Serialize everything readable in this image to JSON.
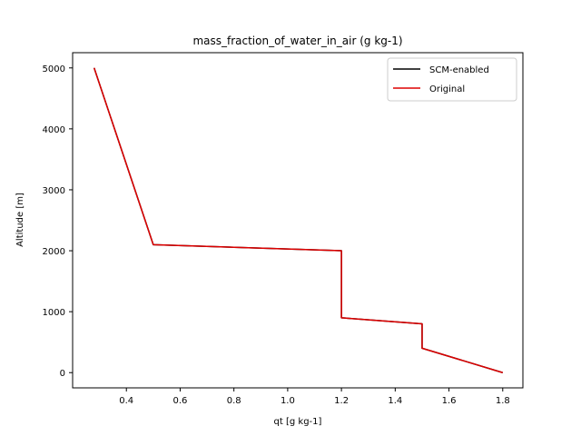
{
  "chart_data": {
    "type": "line",
    "title": "mass_fraction_of_water_in_air (g kg-1)",
    "xlabel": "qt [g kg-1]",
    "ylabel": "Altitude [m]",
    "xlim": [
      0.2,
      1.875
    ],
    "ylim": [
      -250,
      5250
    ],
    "xticks": [
      0.4,
      0.6,
      0.8,
      1.0,
      1.2,
      1.4,
      1.6,
      1.8
    ],
    "xtick_labels": [
      "0.4",
      "0.6",
      "0.8",
      "1.0",
      "1.2",
      "1.4",
      "1.6",
      "1.8"
    ],
    "yticks": [
      0,
      1000,
      2000,
      3000,
      4000,
      5000
    ],
    "ytick_labels": [
      "0",
      "1000",
      "2000",
      "3000",
      "4000",
      "5000"
    ],
    "grid": false,
    "legend_position": "top-right",
    "series": [
      {
        "name": "SCM-enabled",
        "color": "#000000",
        "x": [
          1.8,
          1.5,
          1.5,
          1.2,
          1.2,
          0.5,
          0.28
        ],
        "y": [
          0,
          400,
          800,
          900,
          2000,
          2100,
          5000
        ]
      },
      {
        "name": "Original",
        "color": "#dd0000",
        "x": [
          1.8,
          1.5,
          1.5,
          1.2,
          1.2,
          0.5,
          0.28
        ],
        "y": [
          0,
          400,
          800,
          900,
          2000,
          2100,
          5000
        ]
      }
    ]
  }
}
